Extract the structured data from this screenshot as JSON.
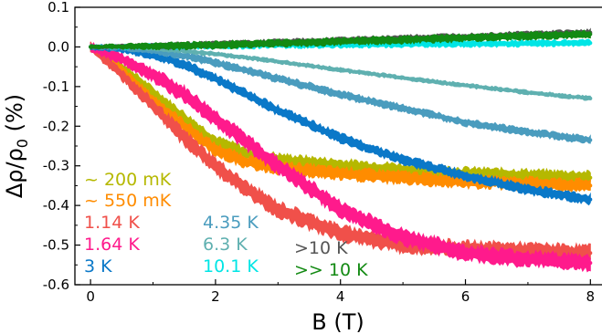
{
  "chart_data": {
    "type": "line",
    "xlabel": "B (T)",
    "ylabel": "Δρ/ρ",
    "ylabel_subscript": "0",
    "ylabel_suffix": " (%)",
    "xlim": [
      -0.25,
      8.2
    ],
    "ylim": [
      -0.6,
      0.1
    ],
    "x_ticks": [
      0,
      2,
      4,
      6,
      8
    ],
    "x_tick_labels": [
      "0",
      "2",
      "4",
      "6",
      "8"
    ],
    "y_ticks": [
      0.1,
      0.0,
      -0.1,
      -0.2,
      -0.3,
      -0.4,
      -0.5,
      -0.6
    ],
    "y_tick_labels": [
      "0.1",
      "0.0",
      "-0.1",
      "-0.2",
      "-0.3",
      "-0.4",
      "-0.5",
      "-0.6"
    ],
    "grid": false,
    "legend_placement": "bottom-left, inline colored labels",
    "series": [
      {
        "name": "~ 200 mK",
        "color": "#b5b800",
        "noise": 0.012,
        "x": [
          0,
          0.5,
          1,
          1.5,
          2,
          2.5,
          3,
          4,
          5,
          6,
          7,
          8
        ],
        "y": [
          0,
          -0.05,
          -0.115,
          -0.18,
          -0.24,
          -0.27,
          -0.285,
          -0.3,
          -0.31,
          -0.32,
          -0.325,
          -0.33
        ]
      },
      {
        "name": "~ 550 mK",
        "color": "#ff8c00",
        "noise": 0.012,
        "x": [
          0,
          0.5,
          1,
          1.5,
          2,
          2.5,
          3,
          4,
          5,
          6,
          7,
          8
        ],
        "y": [
          0,
          -0.06,
          -0.135,
          -0.2,
          -0.26,
          -0.29,
          -0.305,
          -0.32,
          -0.33,
          -0.34,
          -0.345,
          -0.35
        ]
      },
      {
        "name": "1.14 K",
        "color": "#f0504a",
        "noise": 0.015,
        "x": [
          0,
          0.5,
          1,
          1.5,
          2,
          2.5,
          3,
          4,
          5,
          6,
          7,
          8
        ],
        "y": [
          0,
          -0.07,
          -0.15,
          -0.23,
          -0.3,
          -0.36,
          -0.41,
          -0.47,
          -0.5,
          -0.51,
          -0.515,
          -0.52
        ]
      },
      {
        "name": "1.64 K",
        "color": "#ff1a8c",
        "noise": 0.015,
        "x": [
          0,
          0.5,
          1,
          1.5,
          2,
          2.5,
          3,
          4,
          5,
          6,
          7,
          8
        ],
        "y": [
          0,
          -0.03,
          -0.07,
          -0.12,
          -0.18,
          -0.24,
          -0.3,
          -0.41,
          -0.48,
          -0.52,
          -0.535,
          -0.545
        ]
      },
      {
        "name": "3 K",
        "color": "#0a78c8",
        "noise": 0.009,
        "x": [
          0,
          0.5,
          1,
          1.5,
          2,
          2.5,
          3,
          4,
          5,
          6,
          7,
          8
        ],
        "y": [
          0,
          -0.005,
          -0.02,
          -0.045,
          -0.08,
          -0.12,
          -0.16,
          -0.23,
          -0.285,
          -0.325,
          -0.36,
          -0.385
        ]
      },
      {
        "name": "4.35 K",
        "color": "#4a9cbe",
        "noise": 0.007,
        "x": [
          0,
          0.5,
          1,
          1.5,
          2,
          2.5,
          3,
          4,
          5,
          6,
          7,
          8
        ],
        "y": [
          0,
          -0.002,
          -0.01,
          -0.022,
          -0.04,
          -0.06,
          -0.08,
          -0.12,
          -0.155,
          -0.19,
          -0.215,
          -0.235
        ]
      },
      {
        "name": "6.3 K",
        "color": "#5fb0b0",
        "noise": 0.004,
        "x": [
          0,
          0.5,
          1,
          1.5,
          2,
          2.5,
          3,
          4,
          5,
          6,
          7,
          8
        ],
        "y": [
          0,
          -0.001,
          -0.005,
          -0.01,
          -0.018,
          -0.027,
          -0.037,
          -0.058,
          -0.078,
          -0.097,
          -0.115,
          -0.13
        ]
      },
      {
        "name": "10.1 K",
        "color": "#00e5e5",
        "noise": 0.006,
        "x": [
          0,
          0.5,
          1,
          1.5,
          2,
          2.5,
          3,
          4,
          5,
          6,
          7,
          8
        ],
        "y": [
          0,
          0,
          0.001,
          0.002,
          0.003,
          0.004,
          0.005,
          0.006,
          0.007,
          0.008,
          0.009,
          0.01
        ]
      },
      {
        "name": ">10 K",
        "color": "#555555",
        "noise": 0.006,
        "x": [
          0,
          0.5,
          1,
          1.5,
          2,
          2.5,
          3,
          4,
          5,
          6,
          7,
          8
        ],
        "y": [
          0,
          0.001,
          0.002,
          0.004,
          0.006,
          0.008,
          0.011,
          0.016,
          0.021,
          0.026,
          0.031,
          0.036
        ]
      },
      {
        "name": ">> 10 K",
        "color": "#138a13",
        "noise": 0.007,
        "x": [
          0,
          0.5,
          1,
          1.5,
          2,
          2.5,
          3,
          4,
          5,
          6,
          7,
          8
        ],
        "y": [
          0,
          0.001,
          0.002,
          0.003,
          0.005,
          0.007,
          0.009,
          0.014,
          0.018,
          0.023,
          0.028,
          0.032
        ]
      }
    ]
  }
}
